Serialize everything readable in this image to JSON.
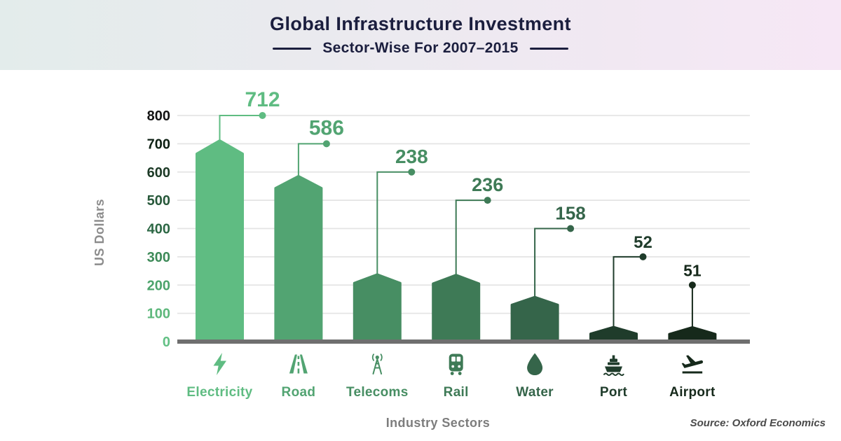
{
  "header": {
    "gradient_left": "#e3eceb",
    "gradient_right": "#f6e7f5",
    "text_color": "#1b1e3e"
  },
  "chart_data": {
    "type": "bar",
    "title": "Global Infrastructure Investment",
    "subtitle": "Sector-Wise For 2007–2015",
    "xlabel": "Industry Sectors",
    "ylabel": "US Dollars",
    "source": "Source: Oxford Economics",
    "ylim": [
      0,
      800
    ],
    "yticks": [
      0,
      100,
      200,
      300,
      400,
      500,
      600,
      700,
      800
    ],
    "grid": true,
    "legend": false,
    "categories": [
      "Electricity",
      "Road",
      "Telecoms",
      "Rail",
      "Water",
      "Port",
      "Airport"
    ],
    "values": [
      712,
      586,
      238,
      236,
      158,
      52,
      51
    ],
    "bar_colors": [
      "#5fbc82",
      "#52a472",
      "#478e63",
      "#3e7a56",
      "#35654a",
      "#1f3c2b",
      "#16291b"
    ],
    "ytick_colors": [
      "#62c084",
      "#5eb87c",
      "#4da46c",
      "#3d8a58",
      "#2d6845",
      "#27583a",
      "#1c3a26",
      "#0d2013",
      "#141414"
    ],
    "icons": [
      "lightning-icon",
      "road-icon",
      "radio-tower-icon",
      "train-icon",
      "water-drop-icon",
      "ship-icon",
      "airplane-takeoff-icon"
    ],
    "colors": {
      "gridline": "#e4e4e4",
      "baseline": "#6f6f6f",
      "ylabel_text": "#8c8c8c",
      "xlabel_text": "#7d7d7d",
      "source_text": "#4a4a4a"
    }
  }
}
